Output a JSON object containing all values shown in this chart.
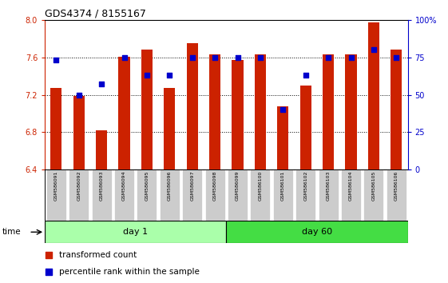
{
  "title": "GDS4374 / 8155167",
  "samples": [
    "GSM586091",
    "GSM586092",
    "GSM586093",
    "GSM586094",
    "GSM586095",
    "GSM586096",
    "GSM586097",
    "GSM586098",
    "GSM586099",
    "GSM586100",
    "GSM586101",
    "GSM586102",
    "GSM586103",
    "GSM586104",
    "GSM586105",
    "GSM586106"
  ],
  "red_values": [
    7.27,
    7.19,
    6.82,
    7.61,
    7.68,
    7.27,
    7.75,
    7.63,
    7.57,
    7.63,
    7.08,
    7.3,
    7.63,
    7.63,
    7.97,
    7.68
  ],
  "blue_values": [
    73,
    50,
    57,
    75,
    63,
    63,
    75,
    75,
    75,
    75,
    40,
    63,
    75,
    75,
    80,
    75
  ],
  "bar_color": "#CC2200",
  "dot_color": "#0000CC",
  "ylim_left": [
    6.4,
    8.0
  ],
  "ylim_right": [
    0,
    100
  ],
  "yticks_left": [
    6.4,
    6.8,
    7.2,
    7.6,
    8.0
  ],
  "yticks_right": [
    0,
    25,
    50,
    75,
    100
  ],
  "ytick_labels_right": [
    "0",
    "25",
    "50",
    "75",
    "100%"
  ],
  "day1_color": "#AAFFAA",
  "day60_color": "#44DD44",
  "sample_box_color": "#CCCCCC",
  "legend_items": [
    "transformed count",
    "percentile rank within the sample"
  ],
  "bar_width": 0.5
}
